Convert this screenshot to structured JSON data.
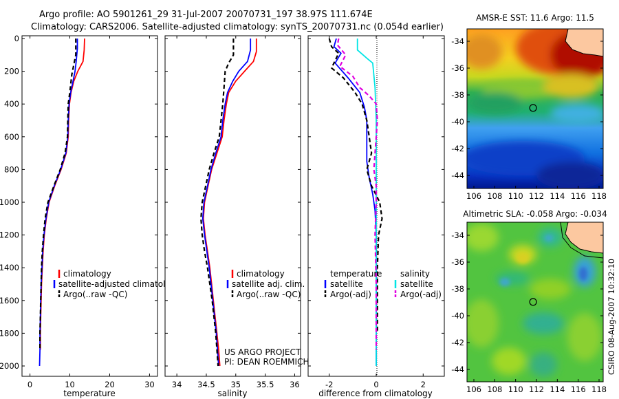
{
  "header": {
    "line1": "Argo profile: AO 5901261_29 31-Jul-2007 20070731_197 38.97S 111.674E",
    "line2": "Climatology: CARS2006. Satellite-adjusted climatology: synTS_20070731.nc (0.054d earlier)"
  },
  "colors": {
    "climatology": "#ff0000",
    "satellite": "#0000ff",
    "argo": "#000000",
    "sal_satellite": "#00e5e5",
    "sal_argo": "#e000e0"
  },
  "chart_data": [
    {
      "type": "line",
      "name": "temperature-profile",
      "xlabel": "temperature",
      "xlim": [
        -2,
        32
      ],
      "ylim": [
        0,
        2080
      ],
      "xticks": [
        "0",
        "10",
        "20",
        "30"
      ],
      "yticks": [
        "0",
        "200",
        "400",
        "600",
        "800",
        "1000",
        "1200",
        "1400",
        "1600",
        "1800",
        "2000"
      ],
      "series": [
        {
          "name": "climatology",
          "color": "#ff0000",
          "dash": "",
          "points": [
            [
              13.7,
              0
            ],
            [
              13.6,
              70
            ],
            [
              13.3,
              140
            ],
            [
              12.0,
              200
            ],
            [
              11.0,
              260
            ],
            [
              10.3,
              330
            ],
            [
              9.9,
              400
            ],
            [
              9.7,
              500
            ],
            [
              9.6,
              600
            ],
            [
              9.1,
              700
            ],
            [
              7.8,
              800
            ],
            [
              6.2,
              900
            ],
            [
              4.8,
              1000
            ],
            [
              4.1,
              1100
            ],
            [
              3.6,
              1200
            ],
            [
              3.3,
              1300
            ],
            [
              3.1,
              1400
            ],
            [
              2.9,
              1500
            ],
            [
              2.8,
              1600
            ],
            [
              2.7,
              1700
            ],
            [
              2.6,
              1800
            ],
            [
              2.6,
              1900
            ]
          ]
        },
        {
          "name": "satellite-adjusted climatology",
          "color": "#0000ff",
          "dash": "",
          "points": [
            [
              11.9,
              0
            ],
            [
              11.9,
              60
            ],
            [
              11.6,
              140
            ],
            [
              11.3,
              200
            ],
            [
              10.8,
              260
            ],
            [
              10.2,
              330
            ],
            [
              9.8,
              400
            ],
            [
              9.6,
              500
            ],
            [
              9.5,
              600
            ],
            [
              9.0,
              700
            ],
            [
              7.7,
              800
            ],
            [
              6.1,
              900
            ],
            [
              4.7,
              1000
            ],
            [
              4.0,
              1100
            ],
            [
              3.5,
              1200
            ],
            [
              3.2,
              1300
            ],
            [
              3.0,
              1400
            ],
            [
              2.8,
              1500
            ],
            [
              2.7,
              1600
            ],
            [
              2.6,
              1700
            ],
            [
              2.5,
              1800
            ],
            [
              2.5,
              1900
            ],
            [
              2.4,
              2000
            ]
          ]
        },
        {
          "name": "Argo(..raw -QC)",
          "color": "#000000",
          "dash": "6,4",
          "points": [
            [
              11.5,
              0
            ],
            [
              11.5,
              100
            ],
            [
              11.0,
              160
            ],
            [
              10.5,
              220
            ],
            [
              10.0,
              330
            ],
            [
              9.6,
              400
            ],
            [
              9.5,
              500
            ],
            [
              9.4,
              600
            ],
            [
              8.8,
              700
            ],
            [
              7.6,
              800
            ],
            [
              6.0,
              900
            ],
            [
              4.5,
              1000
            ],
            [
              3.8,
              1100
            ],
            [
              3.4,
              1200
            ],
            [
              3.1,
              1300
            ],
            [
              2.9,
              1400
            ],
            [
              2.8,
              1500
            ],
            [
              2.7,
              1600
            ],
            [
              2.6,
              1700
            ],
            [
              2.5,
              1800
            ],
            [
              2.5,
              1900
            ]
          ]
        }
      ],
      "legend": [
        "climatology",
        "satellite-adjusted climatology",
        "Argo(..raw -QC)"
      ]
    },
    {
      "type": "line",
      "name": "salinity-profile",
      "xlabel": "salinity",
      "xlim": [
        33.8,
        36.1
      ],
      "ylim": [
        0,
        2080
      ],
      "xticks": [
        "34",
        "34.5",
        "35",
        "35.5",
        "36"
      ],
      "series": [
        {
          "name": "climatology",
          "color": "#ff0000",
          "dash": "",
          "points": [
            [
              35.35,
              0
            ],
            [
              35.35,
              80
            ],
            [
              35.3,
              140
            ],
            [
              35.15,
              200
            ],
            [
              35.0,
              260
            ],
            [
              34.88,
              330
            ],
            [
              34.84,
              400
            ],
            [
              34.8,
              500
            ],
            [
              34.77,
              600
            ],
            [
              34.68,
              700
            ],
            [
              34.59,
              800
            ],
            [
              34.53,
              900
            ],
            [
              34.47,
              1000
            ],
            [
              34.45,
              1100
            ],
            [
              34.48,
              1200
            ],
            [
              34.52,
              1300
            ],
            [
              34.56,
              1400
            ],
            [
              34.59,
              1500
            ],
            [
              34.62,
              1600
            ],
            [
              34.65,
              1700
            ],
            [
              34.68,
              1800
            ],
            [
              34.71,
              1900
            ],
            [
              34.73,
              2000
            ]
          ]
        },
        {
          "name": "satellite adj. clim.",
          "color": "#0000ff",
          "dash": "",
          "points": [
            [
              35.25,
              0
            ],
            [
              35.25,
              70
            ],
            [
              35.2,
              140
            ],
            [
              35.05,
              200
            ],
            [
              34.95,
              260
            ],
            [
              34.86,
              330
            ],
            [
              34.82,
              400
            ],
            [
              34.78,
              500
            ],
            [
              34.75,
              600
            ],
            [
              34.66,
              700
            ],
            [
              34.58,
              800
            ],
            [
              34.52,
              900
            ],
            [
              34.46,
              1000
            ],
            [
              34.44,
              1100
            ],
            [
              34.47,
              1200
            ],
            [
              34.51,
              1300
            ],
            [
              34.55,
              1400
            ],
            [
              34.58,
              1500
            ],
            [
              34.61,
              1600
            ],
            [
              34.64,
              1700
            ],
            [
              34.67,
              1800
            ],
            [
              34.69,
              1900
            ],
            [
              34.71,
              2000
            ]
          ]
        },
        {
          "name": "Argo(..raw -QC)",
          "color": "#000000",
          "dash": "6,4",
          "points": [
            [
              34.96,
              0
            ],
            [
              34.96,
              100
            ],
            [
              34.88,
              150
            ],
            [
              34.82,
              200
            ],
            [
              34.8,
              300
            ],
            [
              34.78,
              400
            ],
            [
              34.75,
              500
            ],
            [
              34.72,
              600
            ],
            [
              34.63,
              700
            ],
            [
              34.55,
              800
            ],
            [
              34.49,
              900
            ],
            [
              34.43,
              1000
            ],
            [
              34.41,
              1100
            ],
            [
              34.43,
              1200
            ],
            [
              34.47,
              1300
            ],
            [
              34.52,
              1400
            ],
            [
              34.56,
              1500
            ],
            [
              34.6,
              1600
            ],
            [
              34.63,
              1700
            ],
            [
              34.66,
              1800
            ],
            [
              34.68,
              1900
            ],
            [
              34.7,
              2000
            ]
          ]
        }
      ],
      "legend": [
        "climatology",
        "satellite adj. clim.",
        "Argo(..raw -QC)"
      ],
      "annotation": [
        "US ARGO PROJECT",
        "PI: DEAN ROEMMICH"
      ]
    },
    {
      "type": "line",
      "name": "difference-profile",
      "xlabel": "difference from climatology",
      "xlim": [
        -2.9,
        2.9
      ],
      "ylim": [
        0,
        2080
      ],
      "xticks": [
        "-2",
        "0",
        "2"
      ],
      "series": [
        {
          "name": "temperature satellite",
          "color": "#0000ff",
          "dash": "",
          "points": [
            [
              -1.7,
              0
            ],
            [
              -1.8,
              50
            ],
            [
              -1.5,
              90
            ],
            [
              -1.75,
              150
            ],
            [
              -1.2,
              240
            ],
            [
              -0.7,
              330
            ],
            [
              -0.5,
              420
            ],
            [
              -0.4,
              500
            ],
            [
              -0.4,
              600
            ],
            [
              -0.4,
              700
            ],
            [
              -0.4,
              750
            ],
            [
              -0.3,
              850
            ],
            [
              -0.15,
              950
            ],
            [
              -0.05,
              1050
            ],
            [
              0,
              1200
            ],
            [
              0,
              2000
            ]
          ]
        },
        {
          "name": "temperature Argo(-adj)",
          "color": "#000000",
          "dash": "6,4",
          "points": [
            [
              -2.0,
              0
            ],
            [
              -1.9,
              50
            ],
            [
              -1.6,
              90
            ],
            [
              -1.9,
              180
            ],
            [
              -1.4,
              240
            ],
            [
              -0.9,
              330
            ],
            [
              -0.6,
              400
            ],
            [
              -0.4,
              500
            ],
            [
              -0.3,
              600
            ],
            [
              -0.2,
              700
            ],
            [
              -0.4,
              800
            ],
            [
              -0.2,
              900
            ],
            [
              0.15,
              1000
            ],
            [
              0.25,
              1100
            ],
            [
              0.1,
              1200
            ],
            [
              0.05,
              1400
            ],
            [
              0.05,
              1800
            ]
          ]
        },
        {
          "name": "salinity satellite",
          "color": "#00e5e5",
          "dash": "",
          "points": [
            [
              -0.8,
              0
            ],
            [
              -0.8,
              70
            ],
            [
              -0.4,
              120
            ],
            [
              -0.15,
              150
            ],
            [
              -0.05,
              300
            ],
            [
              0,
              500
            ],
            [
              0,
              2000
            ]
          ]
        },
        {
          "name": "salinity Argo(-adj)",
          "color": "#e000e0",
          "dash": "6,4",
          "points": [
            [
              -1.6,
              0
            ],
            [
              -1.65,
              40
            ],
            [
              -1.3,
              100
            ],
            [
              -1.55,
              170
            ],
            [
              -1.0,
              230
            ],
            [
              -0.7,
              300
            ],
            [
              -0.3,
              350
            ],
            [
              0,
              400
            ],
            [
              0.05,
              500
            ],
            [
              0,
              600
            ],
            [
              -0.1,
              800
            ],
            [
              0,
              900
            ],
            [
              0,
              1000
            ],
            [
              -0.05,
              1200
            ],
            [
              0,
              1500
            ],
            [
              0,
              1900
            ]
          ]
        }
      ],
      "legend_headers": [
        "temperature",
        "salinity"
      ],
      "legend": [
        "satellite",
        "Argo(-adj)",
        "satellite",
        "Argo(-adj)"
      ]
    },
    {
      "type": "heatmap",
      "name": "sst-map",
      "title": "AMSR-E SST: 11.6 Argo: 11.5",
      "xticks": [
        "106",
        "108",
        "110",
        "112",
        "114",
        "116",
        "118"
      ],
      "yticks": [
        "-34",
        "-36",
        "-38",
        "-40",
        "-42",
        "-44"
      ],
      "xlim": [
        105,
        118.5
      ],
      "ylim": [
        -45,
        -33
      ],
      "marker": [
        111.674,
        -38.97
      ]
    },
    {
      "type": "heatmap",
      "name": "sla-map",
      "title": "Altimetric SLA: -0.058 Argo: -0.034",
      "xticks": [
        "106",
        "108",
        "110",
        "112",
        "114",
        "116",
        "118"
      ],
      "yticks": [
        "-34",
        "-36",
        "-38",
        "-40",
        "-42",
        "-44"
      ],
      "xlim": [
        105,
        118.5
      ],
      "ylim": [
        -45,
        -33
      ],
      "marker": [
        111.674,
        -38.97
      ]
    }
  ],
  "footer_stamp": "CSIRO 08-Aug-2007 10:32:10"
}
